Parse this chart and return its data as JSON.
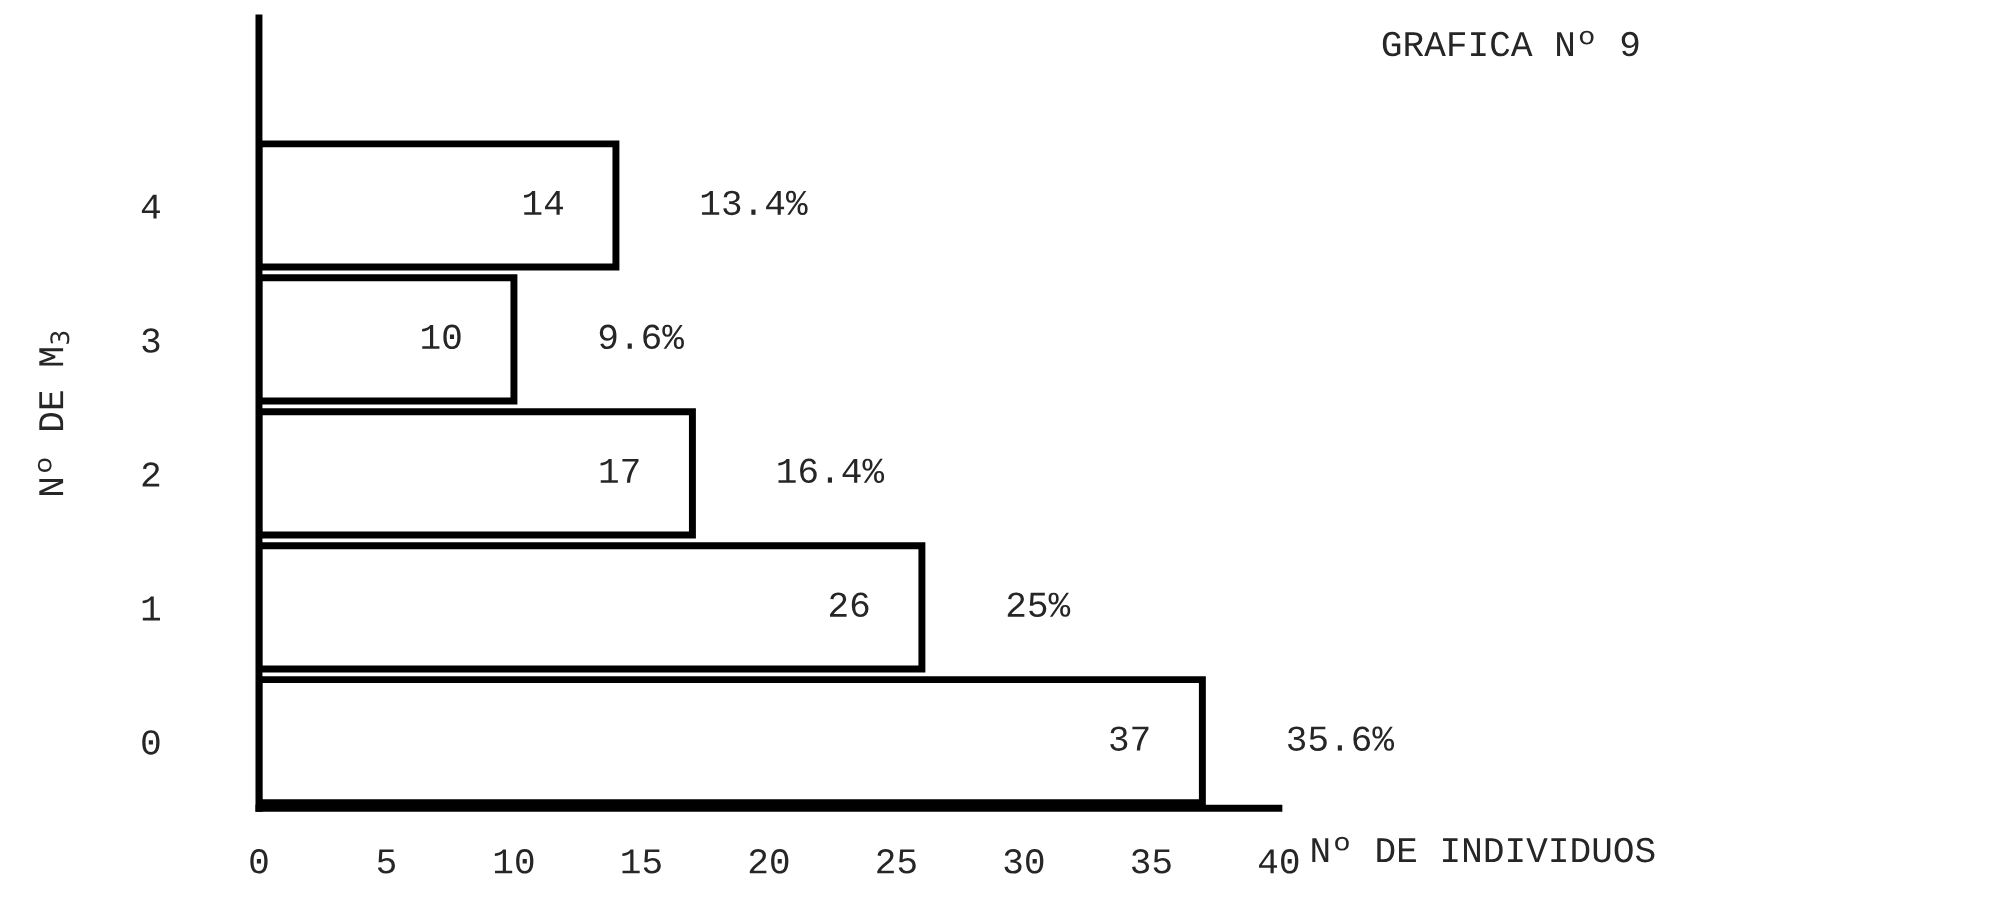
{
  "chart_data": {
    "type": "bar",
    "orientation": "horizontal",
    "title": "GRAFICA Nº 9",
    "xlabel": "Nº DE INDIVIDUOS",
    "ylabel": "Nº DE M$_{3}$",
    "categories": [
      "4",
      "3",
      "2",
      "1",
      "0"
    ],
    "values": [
      14,
      10,
      17,
      26,
      37
    ],
    "color": "#ffffff",
    "data_labels": true,
    "xlim": [
      0,
      40
    ],
    "xticks": [
      0,
      5,
      10,
      15,
      20,
      25,
      30,
      35,
      40
    ],
    "grid": false,
    "annotations": [
      {
        "text": "13.4%",
        "x": 14,
        "y": "4"
      },
      {
        "text": "9.6%",
        "x": 10,
        "y": "3"
      },
      {
        "text": "16.4%",
        "x": 17,
        "y": "2"
      },
      {
        "text": "25%",
        "x": 26,
        "y": "1"
      },
      {
        "text": "35.6%",
        "x": 37,
        "y": "0"
      }
    ]
  }
}
